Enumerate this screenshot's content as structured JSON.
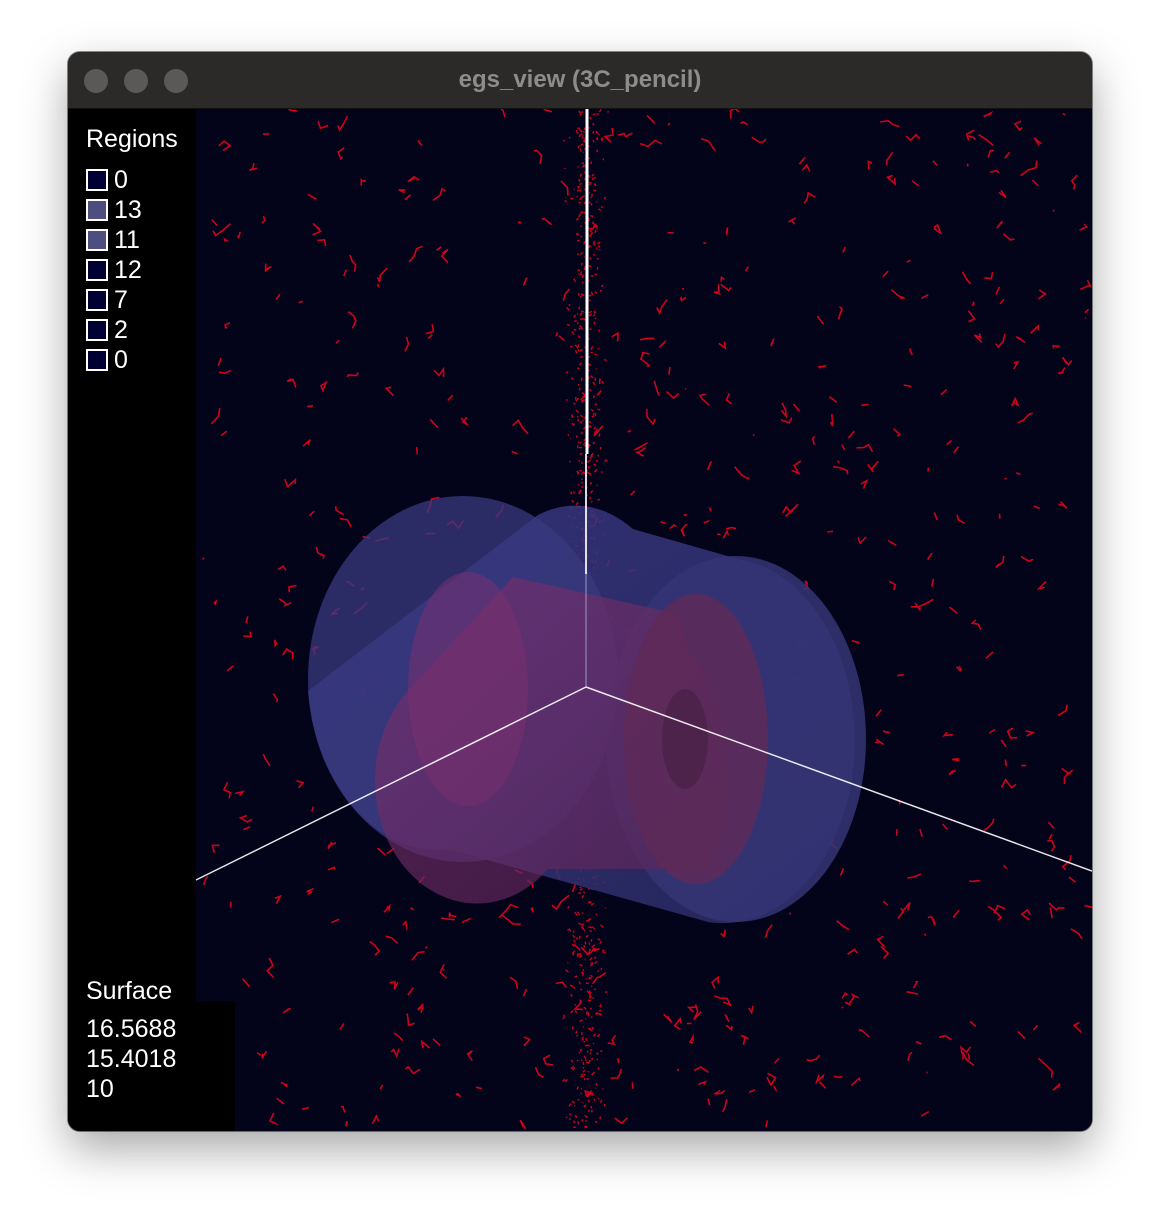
{
  "window": {
    "title": "egs_view (3C_pencil)"
  },
  "legend": {
    "regions_title": "Regions",
    "regions": [
      {
        "label": "0",
        "color": "#000033"
      },
      {
        "label": "13",
        "color": "#4d4d80"
      },
      {
        "label": "11",
        "color": "#4d4d80"
      },
      {
        "label": "12",
        "color": "#000033"
      },
      {
        "label": "7",
        "color": "#000033"
      },
      {
        "label": "2",
        "color": "#000033"
      },
      {
        "label": "0",
        "color": "#000033"
      }
    ],
    "surface_title": "Surface",
    "surface_values": [
      "16.5688",
      "15.4018",
      "10"
    ]
  },
  "scene": {
    "background_color": "#03031a",
    "track_color": "#d0011b",
    "outer_cylinder_color": "#38387a",
    "inner_cylinder_color": "#6e2c5e",
    "axis_color": "#ffffff"
  }
}
